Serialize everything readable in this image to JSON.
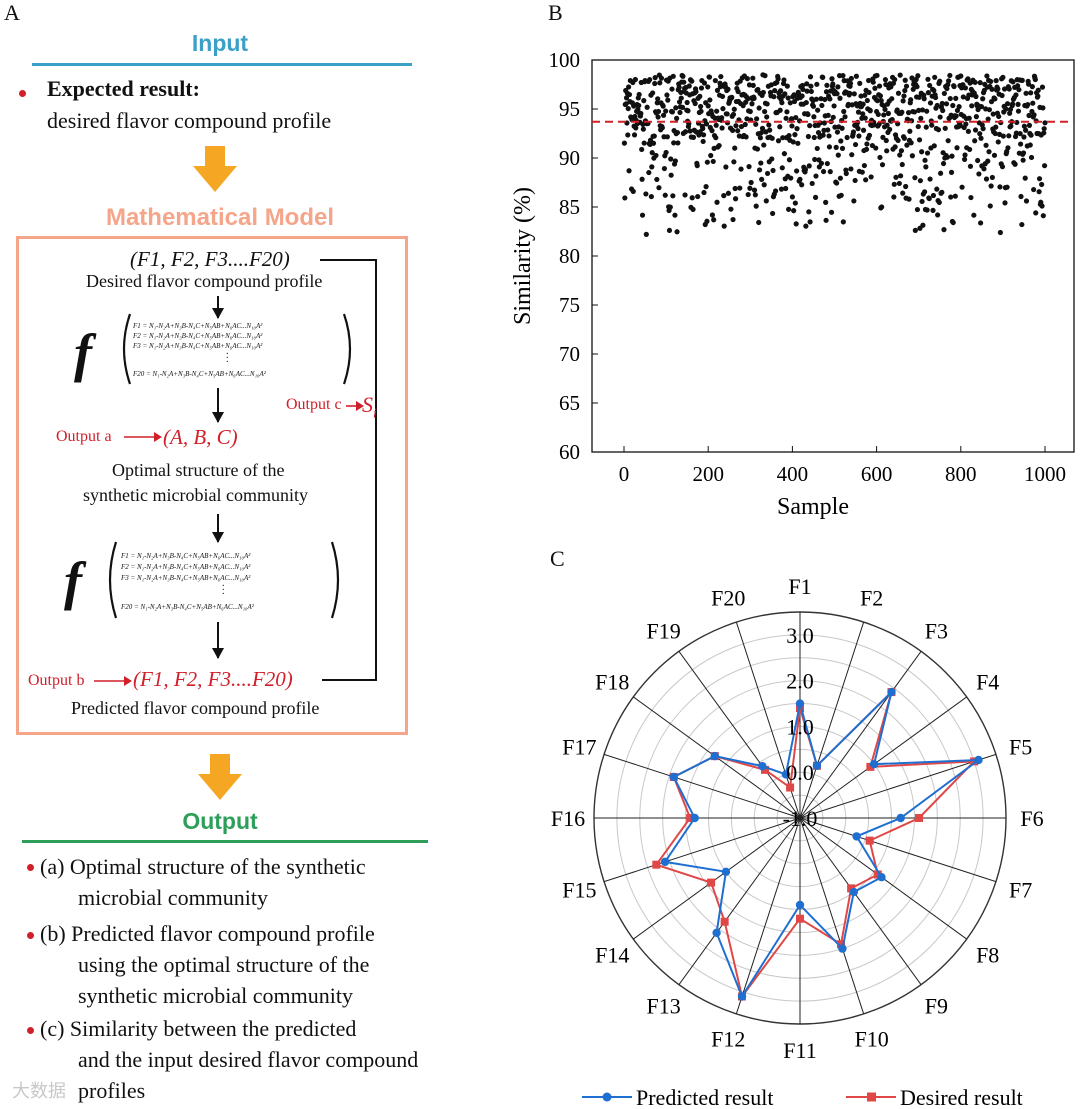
{
  "panel_a": {
    "letter": "A",
    "input_header": "Input",
    "expected_result_label": "Expected result:",
    "expected_result_text": "desired flavor compound profile",
    "model_header": "Mathematical Model",
    "f_vector_top": "(F1, F2, F3....F20)",
    "desired_profile_label": "Desired flavor compound profile",
    "eq1": [
      "F1 = N₁-N₂A+N₃B-N₄C+N₅AB+N₆AC...N₁₀A²",
      "F2 = N₁-N₂A+N₃B-N₄C+N₅AB+N₆AC...N₁₀A²",
      "F3 = N₁-N₂A+N₃B-N₄C+N₅AB+N₆AC...N₁₀A²",
      "F20 = N₁-N₂A+N₃B-N₄C+N₅AB+N₆AC...N₁₀A²"
    ],
    "output_c_label": "Output c",
    "output_c_value": "S",
    "output_c_sub": "i",
    "output_a_label": "Output a",
    "output_a_value": "(A, B, C)",
    "optimal_structure_line1": "Optimal structure of the",
    "optimal_structure_line2": "synthetic microbial community",
    "output_b_label": "Output b",
    "output_b_value": "(F1, F2, F3....F20)",
    "predicted_profile_label": "Predicted flavor compound profile",
    "output_header": "Output",
    "out_a_line1": "(a) Optimal structure of the synthetic",
    "out_a_line2": "microbial community",
    "out_b_line1": "(b) Predicted flavor compound profile",
    "out_b_line2": "using the optimal structure of the",
    "out_b_line3": "synthetic microbial community",
    "out_c_line1": "(c) Similarity between the predicted",
    "out_c_line2": "and the input desired flavor compound",
    "out_c_line3": "profiles",
    "watermark": "大数据"
  },
  "colors": {
    "input_blue": "#3aa0c8",
    "model_orange": "#f4a58a",
    "arrow_yellow": "#f5a623",
    "output_green": "#2e9e5b",
    "accent_red": "#d0202a",
    "predicted_blue": "#1f6fd1",
    "desired_red": "#e04848"
  },
  "chart_data": [
    {
      "panel": "B",
      "type": "scatter",
      "xlabel": "Sample",
      "ylabel": "Similarity (%)",
      "xlim": [
        -80,
        1060
      ],
      "ylim": [
        60,
        100
      ],
      "xticks": [
        0,
        200,
        400,
        600,
        800,
        1000
      ],
      "yticks": [
        60,
        65,
        70,
        75,
        80,
        85,
        90,
        95,
        100
      ],
      "n_points": 1000,
      "threshold": 93.7,
      "threshold_style": "red dashed line",
      "bulk_range": [
        92,
        98.5
      ],
      "low_range": [
        82,
        92
      ],
      "low_fraction": 0.3
    },
    {
      "panel": "C",
      "type": "radar",
      "categories": [
        "F1",
        "F2",
        "F3",
        "F4",
        "F5",
        "F6",
        "F7",
        "F8",
        "F9",
        "F10",
        "F11",
        "F12",
        "F13",
        "F14",
        "F15",
        "F16",
        "F17",
        "F18",
        "F19",
        "F20"
      ],
      "rmin": -1.0,
      "rmax": 3.5,
      "tick_labels": [
        "-1.0",
        "0.0",
        "1.0",
        "2.0",
        "3.0"
      ],
      "tick_values": [
        -1.0,
        0.0,
        1.0,
        2.0,
        3.0
      ],
      "series": [
        {
          "name": "Predicted result",
          "values": [
            1.5,
            0.2,
            2.4,
            1.0,
            3.1,
            1.2,
            0.3,
            1.2,
            1.0,
            2.0,
            0.9,
            3.1,
            2.1,
            1.0,
            2.1,
            1.3,
            1.9,
            1.3,
            0.4,
            0.0
          ]
        },
        {
          "name": "Desired result",
          "values": [
            1.4,
            0.2,
            2.4,
            0.9,
            3.0,
            1.6,
            0.6,
            1.1,
            0.9,
            1.9,
            1.2,
            3.1,
            1.8,
            1.4,
            2.3,
            1.4,
            1.9,
            1.3,
            0.3,
            -0.3
          ]
        }
      ]
    }
  ]
}
